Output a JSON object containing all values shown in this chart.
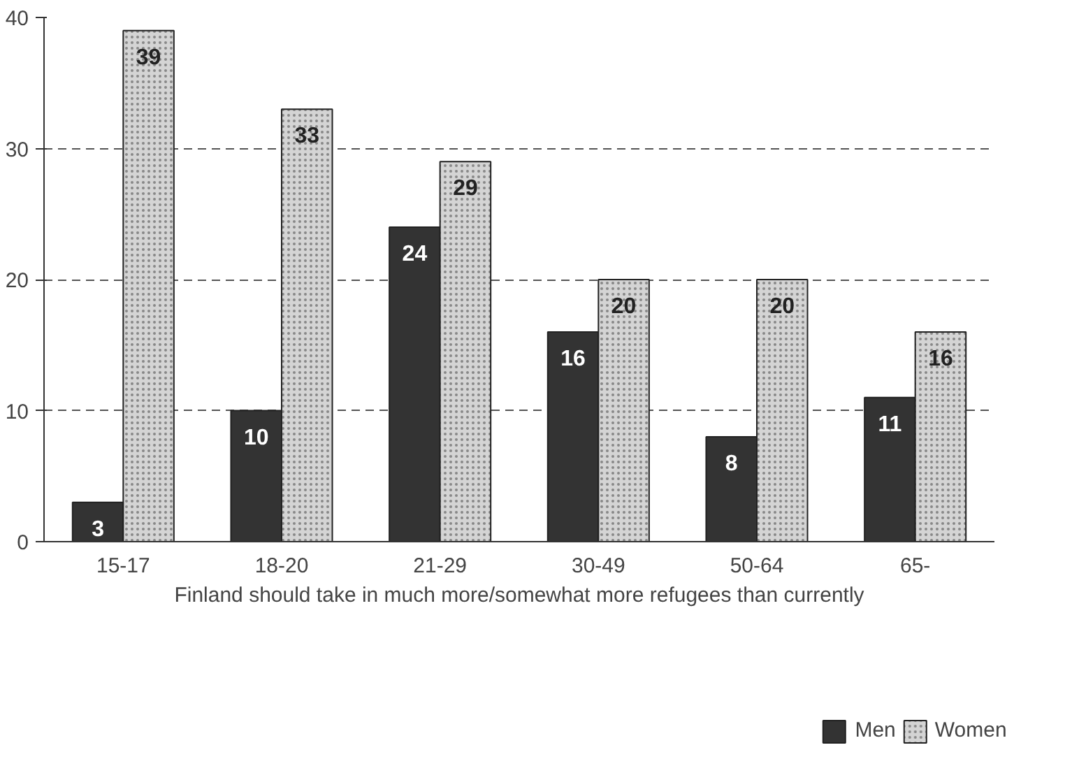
{
  "chart_data": {
    "type": "bar",
    "categories": [
      "15-17",
      "18-20",
      "21-29",
      "30-49",
      "50-64",
      "65-"
    ],
    "series": [
      {
        "name": "Men",
        "color": "#333333",
        "values": [
          3,
          10,
          24,
          16,
          8,
          11
        ]
      },
      {
        "name": "Women",
        "color": "#d4d4d4",
        "values": [
          39,
          33,
          29,
          20,
          20,
          16
        ]
      }
    ],
    "xlabel": "Finland should take in much more/somewhat more refugees than currently",
    "ylim": [
      0,
      40
    ],
    "yticks": [
      0,
      10,
      20,
      30,
      40
    ],
    "grid": "y",
    "legend": "bottom",
    "data_labels": true
  }
}
